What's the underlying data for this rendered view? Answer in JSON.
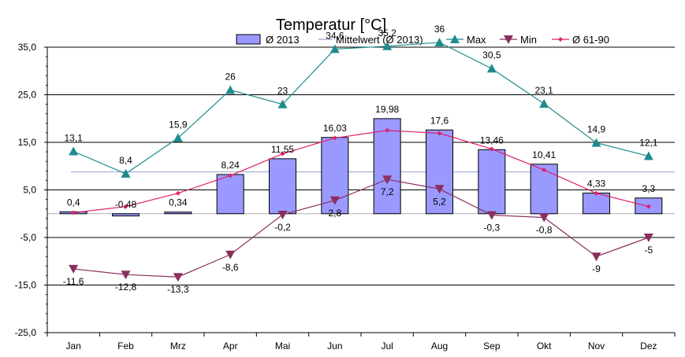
{
  "chart_data": {
    "type": "bar",
    "title": "Temperatur [°C]",
    "categories": [
      "Jan",
      "Feb",
      "Mrz",
      "Apr",
      "Mai",
      "Jun",
      "Jul",
      "Aug",
      "Sep",
      "Okt",
      "Nov",
      "Dez"
    ],
    "ylim": [
      -25,
      35
    ],
    "yticks": [
      35,
      25,
      15,
      5,
      -5,
      -15,
      -25
    ],
    "ytick_labels": [
      "35,0",
      "25,0",
      "15,0",
      "5,0",
      "-5,0",
      "-15,0",
      "-25,0"
    ],
    "grid": true,
    "legend_position": "top",
    "series": [
      {
        "name": "Ø 2013",
        "kind": "bar",
        "color": "#9999ff",
        "values": [
          0.4,
          -0.48,
          0.34,
          8.24,
          11.55,
          16.03,
          19.98,
          17.6,
          13.46,
          10.41,
          4.33,
          3.3
        ],
        "labels": [
          "0,4",
          "-0,48",
          "0,34",
          "8,24",
          "11,55",
          "16,03",
          "19,98",
          "17,6",
          "13,46",
          "10,41",
          "4,33",
          "3,3"
        ]
      },
      {
        "name": "Mittelwert (Ø 2013)",
        "kind": "hline",
        "color": "#aab0d8",
        "value": 8.8
      },
      {
        "name": "Max",
        "kind": "line",
        "marker": "triangle-up",
        "color": "#1f8c8c",
        "values": [
          13.1,
          8.4,
          15.9,
          26,
          23,
          34.6,
          35.2,
          36,
          30.5,
          23.1,
          14.9,
          12.1
        ],
        "labels": [
          "13,1",
          "8,4",
          "15,9",
          "26",
          "23",
          "34,6",
          "35,2",
          "36",
          "30,5",
          "23,1",
          "14,9",
          "12,1"
        ]
      },
      {
        "name": "Min",
        "kind": "line",
        "marker": "triangle-down",
        "color": "#8b2f5f",
        "values": [
          -11.6,
          -12.8,
          -13.3,
          -8.6,
          -0.2,
          2.8,
          7.2,
          5.2,
          -0.3,
          -0.8,
          -9,
          -5
        ],
        "labels": [
          "-11,6",
          "-12,8",
          "-13,3",
          "-8,6",
          "-0,2",
          "2,8",
          "7,2",
          "5,2",
          "-0,3",
          "-0,8",
          "-9",
          "-5"
        ]
      },
      {
        "name": "Ø 61-90",
        "kind": "line",
        "marker": "diamond",
        "color": "#e0206a",
        "values": [
          0.2,
          1.5,
          4.3,
          8.0,
          12.6,
          15.9,
          17.5,
          16.9,
          13.6,
          9.2,
          4.3,
          1.5
        ]
      }
    ]
  }
}
